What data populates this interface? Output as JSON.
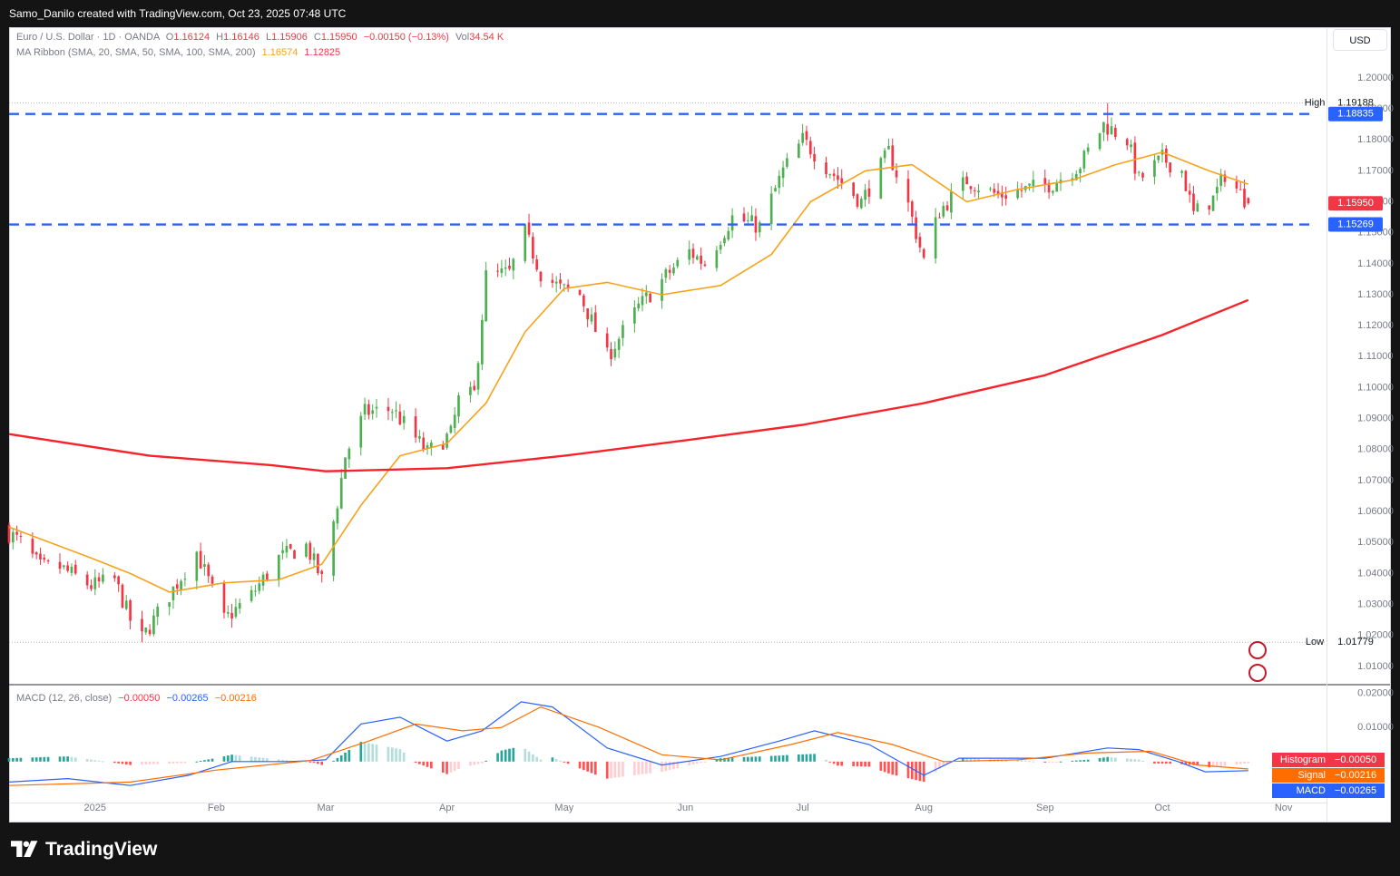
{
  "header": {
    "attribution": "Samo_Danilo created with TradingView.com, Oct 23, 2025 07:48 UTC"
  },
  "legend": {
    "symbol": "Euro / U.S. Dollar · 1D · OANDA",
    "open_label": "O",
    "open": "1.16124",
    "high_label": "H",
    "high": "1.16146",
    "low_label": "L",
    "low": "1.15906",
    "close_label": "C",
    "close": "1.15950",
    "change": "−0.00150 (−0.13%)",
    "vol_label": "Vol",
    "vol": "34.54 K",
    "ma_title": "MA Ribbon (SMA, 20, SMA, 50, SMA, 100, SMA, 200)",
    "ma20": "1.16574",
    "ma200": "1.12825",
    "macd_title": "MACD (12, 26, close)",
    "macd_hist": "−0.00050",
    "macd_macd": "−0.00265",
    "macd_signal": "−0.00216"
  },
  "currency_button": "USD",
  "brand": "TradingView",
  "colors": {
    "bull": "#4caf50",
    "bear": "#f23645",
    "ma20": "#f7a21b",
    "ma200": "#f7232b",
    "level": "#2962ff",
    "macd": "#2962ff",
    "signal": "#ff6d00",
    "hist_pos_strong": "#26a69a",
    "hist_pos_weak": "#b2dfdb",
    "hist_neg_strong": "#ff5252",
    "hist_neg_weak": "#ffcdd2"
  },
  "chart_data": {
    "type": "candlestick",
    "price_axis": {
      "ylim": [
        1.005,
        1.207
      ],
      "ticks": [
        "1.20000",
        "1.19000",
        "1.18000",
        "1.17000",
        "1.16000",
        "1.15000",
        "1.14000",
        "1.13000",
        "1.12000",
        "1.11000",
        "1.10000",
        "1.09000",
        "1.08000",
        "1.07000",
        "1.06000",
        "1.05000",
        "1.04000",
        "1.03000",
        "1.02000",
        "1.01000"
      ]
    },
    "time_axis": {
      "range": [
        "2024-12-10",
        "2025-11-12"
      ],
      "labels": [
        {
          "date": "2025-01-01",
          "label": "2025"
        },
        {
          "date": "2025-02-01",
          "label": "Feb"
        },
        {
          "date": "2025-03-01",
          "label": "Mar"
        },
        {
          "date": "2025-04-01",
          "label": "Apr"
        },
        {
          "date": "2025-05-01",
          "label": "May"
        },
        {
          "date": "2025-06-01",
          "label": "Jun"
        },
        {
          "date": "2025-07-01",
          "label": "Jul"
        },
        {
          "date": "2025-08-01",
          "label": "Aug"
        },
        {
          "date": "2025-09-01",
          "label": "Sep"
        },
        {
          "date": "2025-10-01",
          "label": "Oct"
        },
        {
          "date": "2025-11-01",
          "label": "Nov"
        }
      ]
    },
    "close_path": [
      [
        "2024-12-10",
        1.053
      ],
      [
        "2024-12-13",
        1.05
      ],
      [
        "2024-12-18",
        1.042
      ],
      [
        "2024-12-23",
        1.042
      ],
      [
        "2024-12-31",
        1.036
      ],
      [
        "2025-01-06",
        1.038
      ],
      [
        "2025-01-10",
        1.025
      ],
      [
        "2025-01-13",
        1.019
      ],
      [
        "2025-01-20",
        1.033
      ],
      [
        "2025-01-27",
        1.047
      ],
      [
        "2025-02-03",
        1.025
      ],
      [
        "2025-02-10",
        1.033
      ],
      [
        "2025-02-17",
        1.045
      ],
      [
        "2025-02-24",
        1.049
      ],
      [
        "2025-02-28",
        1.038
      ],
      [
        "2025-03-04",
        1.063
      ],
      [
        "2025-03-06",
        1.078
      ],
      [
        "2025-03-11",
        1.092
      ],
      [
        "2025-03-18",
        1.093
      ],
      [
        "2025-03-27",
        1.079
      ],
      [
        "2025-04-02",
        1.085
      ],
      [
        "2025-04-04",
        1.096
      ],
      [
        "2025-04-08",
        1.098
      ],
      [
        "2025-04-11",
        1.136
      ],
      [
        "2025-04-17",
        1.137
      ],
      [
        "2025-04-21",
        1.15
      ],
      [
        "2025-04-25",
        1.137
      ],
      [
        "2025-04-30",
        1.132
      ],
      [
        "2025-05-05",
        1.13
      ],
      [
        "2025-05-12",
        1.11
      ],
      [
        "2025-05-20",
        1.126
      ],
      [
        "2025-05-27",
        1.136
      ],
      [
        "2025-06-02",
        1.144
      ],
      [
        "2025-06-06",
        1.14
      ],
      [
        "2025-06-13",
        1.155
      ],
      [
        "2025-06-20",
        1.152
      ],
      [
        "2025-06-26",
        1.17
      ],
      [
        "2025-07-01",
        1.18
      ],
      [
        "2025-07-08",
        1.17
      ],
      [
        "2025-07-16",
        1.16
      ],
      [
        "2025-07-23",
        1.176
      ],
      [
        "2025-07-28",
        1.159
      ],
      [
        "2025-08-01",
        1.141
      ],
      [
        "2025-08-05",
        1.157
      ],
      [
        "2025-08-12",
        1.167
      ],
      [
        "2025-08-20",
        1.162
      ],
      [
        "2025-08-27",
        1.164
      ],
      [
        "2025-09-03",
        1.166
      ],
      [
        "2025-09-10",
        1.172
      ],
      [
        "2025-09-16",
        1.185
      ],
      [
        "2025-09-22",
        1.18
      ],
      [
        "2025-09-25",
        1.167
      ],
      [
        "2025-10-01",
        1.174
      ],
      [
        "2025-10-06",
        1.17
      ],
      [
        "2025-10-09",
        1.156
      ],
      [
        "2025-10-14",
        1.161
      ],
      [
        "2025-10-17",
        1.169
      ],
      [
        "2025-10-22",
        1.161
      ],
      [
        "2025-10-23",
        1.1595
      ]
    ],
    "reference_candle": {
      "open": 1.16124,
      "high": 1.16146,
      "low": 1.15906,
      "close": 1.1595
    },
    "ma_series": [
      {
        "name": "SMA 20",
        "color": "#f7a21b",
        "points": [
          [
            "2024-12-10",
            1.055
          ],
          [
            "2024-12-31",
            1.045
          ],
          [
            "2025-01-10",
            1.04
          ],
          [
            "2025-01-20",
            1.034
          ],
          [
            "2025-02-03",
            1.037
          ],
          [
            "2025-02-17",
            1.038
          ],
          [
            "2025-02-28",
            1.043
          ],
          [
            "2025-03-10",
            1.062
          ],
          [
            "2025-03-20",
            1.078
          ],
          [
            "2025-04-01",
            1.082
          ],
          [
            "2025-04-11",
            1.095
          ],
          [
            "2025-04-21",
            1.118
          ],
          [
            "2025-05-01",
            1.132
          ],
          [
            "2025-05-12",
            1.134
          ],
          [
            "2025-05-26",
            1.13
          ],
          [
            "2025-06-10",
            1.133
          ],
          [
            "2025-06-23",
            1.143
          ],
          [
            "2025-07-03",
            1.16
          ],
          [
            "2025-07-17",
            1.17
          ],
          [
            "2025-07-29",
            1.172
          ],
          [
            "2025-08-12",
            1.16
          ],
          [
            "2025-08-25",
            1.164
          ],
          [
            "2025-09-08",
            1.167
          ],
          [
            "2025-09-19",
            1.172
          ],
          [
            "2025-10-01",
            1.176
          ],
          [
            "2025-10-13",
            1.17
          ],
          [
            "2025-10-23",
            1.1657
          ]
        ]
      },
      {
        "name": "SMA 200",
        "color": "#f7232b",
        "points": [
          [
            "2024-12-10",
            1.085
          ],
          [
            "2025-01-15",
            1.078
          ],
          [
            "2025-02-15",
            1.075
          ],
          [
            "2025-03-01",
            1.073
          ],
          [
            "2025-04-01",
            1.074
          ],
          [
            "2025-05-01",
            1.078
          ],
          [
            "2025-06-01",
            1.083
          ],
          [
            "2025-07-01",
            1.088
          ],
          [
            "2025-08-01",
            1.095
          ],
          [
            "2025-09-01",
            1.104
          ],
          [
            "2025-10-01",
            1.117
          ],
          [
            "2025-10-23",
            1.1283
          ]
        ]
      }
    ],
    "levels": [
      {
        "price": 1.18835,
        "label": "1.18835",
        "color": "#2962ff",
        "style": "dashed"
      },
      {
        "price": 1.15269,
        "label": "1.15269",
        "color": "#2962ff",
        "style": "dashed"
      }
    ],
    "extremes": {
      "high": {
        "label": "High",
        "price": 1.19188,
        "text": "1.19188",
        "date": "2025-09-17"
      },
      "low": {
        "label": "Low",
        "price": 1.01779,
        "text": "1.01779",
        "date": "2025-01-13"
      }
    },
    "last_price": {
      "price": 1.1595,
      "text": "1.15950"
    },
    "macd": {
      "ylim": [
        -0.012,
        0.022
      ],
      "ticks": [
        "0.02000",
        "0.01000"
      ],
      "labels": {
        "histogram": "Histogram",
        "signal": "Signal",
        "macd": "MACD"
      },
      "macd_points": [
        [
          "2024-12-10",
          -0.006
        ],
        [
          "2024-12-25",
          -0.005
        ],
        [
          "2025-01-10",
          -0.007
        ],
        [
          "2025-01-25",
          -0.004
        ],
        [
          "2025-02-05",
          0.0
        ],
        [
          "2025-02-20",
          0.0
        ],
        [
          "2025-03-01",
          0.0005
        ],
        [
          "2025-03-10",
          0.011
        ],
        [
          "2025-03-20",
          0.013
        ],
        [
          "2025-04-01",
          0.006
        ],
        [
          "2025-04-10",
          0.009
        ],
        [
          "2025-04-20",
          0.0175
        ],
        [
          "2025-04-28",
          0.016
        ],
        [
          "2025-05-12",
          0.004
        ],
        [
          "2025-05-26",
          -0.001
        ],
        [
          "2025-06-10",
          0.0015
        ],
        [
          "2025-06-25",
          0.006
        ],
        [
          "2025-07-04",
          0.009
        ],
        [
          "2025-07-18",
          0.005
        ],
        [
          "2025-08-01",
          -0.004
        ],
        [
          "2025-08-10",
          0.001
        ],
        [
          "2025-09-01",
          0.001
        ],
        [
          "2025-09-17",
          0.004
        ],
        [
          "2025-09-25",
          0.0035
        ],
        [
          "2025-10-05",
          0.0
        ],
        [
          "2025-10-12",
          -0.003
        ],
        [
          "2025-10-23",
          -0.00265
        ]
      ],
      "signal_points": [
        [
          "2024-12-10",
          -0.007
        ],
        [
          "2025-01-10",
          -0.006
        ],
        [
          "2025-02-01",
          -0.0025
        ],
        [
          "2025-02-25",
          0.0003
        ],
        [
          "2025-03-12",
          0.006
        ],
        [
          "2025-03-24",
          0.011
        ],
        [
          "2025-04-05",
          0.009
        ],
        [
          "2025-04-15",
          0.01
        ],
        [
          "2025-04-25",
          0.016
        ],
        [
          "2025-05-10",
          0.01
        ],
        [
          "2025-05-26",
          0.002
        ],
        [
          "2025-06-10",
          0.0005
        ],
        [
          "2025-06-28",
          0.005
        ],
        [
          "2025-07-10",
          0.0085
        ],
        [
          "2025-07-24",
          0.005
        ],
        [
          "2025-08-06",
          0.0
        ],
        [
          "2025-08-25",
          0.0005
        ],
        [
          "2025-09-12",
          0.0025
        ],
        [
          "2025-09-28",
          0.003
        ],
        [
          "2025-10-10",
          -0.001
        ],
        [
          "2025-10-23",
          -0.00216
        ]
      ]
    }
  }
}
